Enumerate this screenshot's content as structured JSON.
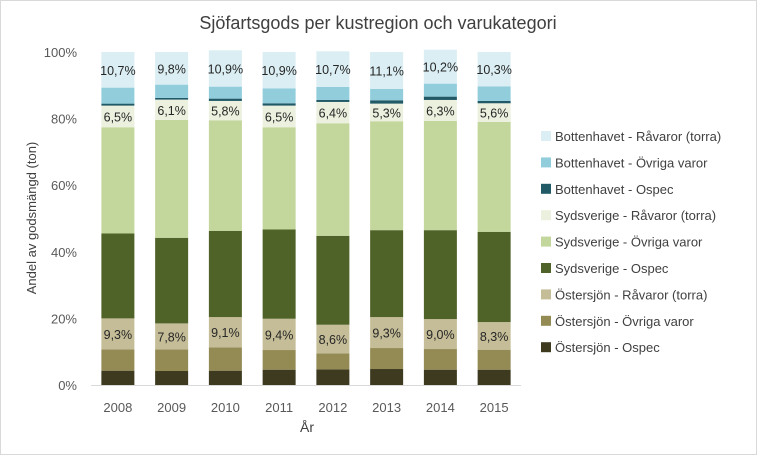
{
  "chart_data": {
    "type": "bar",
    "stacked": true,
    "percent": true,
    "title": "Sjöfartsgods per kustregion och varukategori",
    "xlabel": "År",
    "ylabel": "Andel av godsmängd (ton)",
    "ylim": [
      0,
      100
    ],
    "yticks": [
      "0%",
      "20%",
      "40%",
      "60%",
      "80%",
      "100%"
    ],
    "grid": false,
    "legend_position": "right",
    "categories": [
      "2008",
      "2009",
      "2010",
      "2011",
      "2012",
      "2013",
      "2014",
      "2015"
    ],
    "series": [
      {
        "name": "Östersjön  - Ospec",
        "color": "#3d3a1f",
        "values": [
          4.3,
          4.2,
          4.3,
          4.6,
          4.7,
          4.8,
          4.6,
          4.6
        ]
      },
      {
        "name": "Östersjön  - Övriga varor",
        "color": "#948a54",
        "values": [
          6.4,
          6.5,
          7.0,
          5.9,
          4.8,
          6.3,
          6.2,
          6.0
        ]
      },
      {
        "name": "Östersjön  - Råvaror (torra)",
        "color": "#c4bd97",
        "values": [
          9.3,
          7.8,
          9.1,
          9.4,
          8.6,
          9.3,
          9.0,
          8.3
        ]
      },
      {
        "name": "Sydsverige - Ospec",
        "color": "#4f6228",
        "values": [
          25.5,
          25.7,
          25.9,
          26.8,
          26.7,
          26.1,
          26.7,
          27.1
        ]
      },
      {
        "name": "Sydsverige - Övriga varor",
        "color": "#c3d69b",
        "values": [
          31.9,
          35.4,
          33.2,
          30.7,
          33.8,
          32.7,
          32.8,
          33.0
        ]
      },
      {
        "name": "Sydsverige - Råvaror (torra)",
        "color": "#ebf1de",
        "values": [
          6.5,
          6.1,
          5.8,
          6.5,
          6.4,
          5.3,
          6.3,
          5.6
        ]
      },
      {
        "name": "Bottenhavet - Ospec",
        "color": "#215967",
        "values": [
          0.6,
          0.5,
          0.7,
          0.7,
          0.6,
          1.0,
          1.0,
          0.7
        ]
      },
      {
        "name": "Bottenhavet - Övriga varor",
        "color": "#92cddc",
        "values": [
          4.8,
          4.0,
          3.6,
          4.5,
          3.9,
          3.4,
          3.9,
          4.4
        ]
      },
      {
        "name": "Bottenhavet - Råvaror (torra)",
        "color": "#daeef3",
        "values": [
          10.7,
          9.8,
          10.9,
          10.9,
          10.7,
          11.1,
          10.2,
          10.3
        ]
      }
    ],
    "data_labels": [
      {
        "series_index": 2,
        "labels": [
          "9,3%",
          "7,8%",
          "9,1%",
          "9,4%",
          "8,6%",
          "9,3%",
          "9,0%",
          "8,3%"
        ]
      },
      {
        "series_index": 5,
        "labels": [
          "6,5%",
          "6,1%",
          "5,8%",
          "6,5%",
          "6,4%",
          "5,3%",
          "6,3%",
          "5,6%"
        ]
      },
      {
        "series_index": 8,
        "labels": [
          "10,7%",
          "9,8%",
          "10,9%",
          "10,9%",
          "10,7%",
          "11,1%",
          "10,2%",
          "10,3%"
        ]
      }
    ],
    "legend_order": [
      8,
      7,
      6,
      5,
      4,
      3,
      2,
      1,
      0
    ]
  }
}
